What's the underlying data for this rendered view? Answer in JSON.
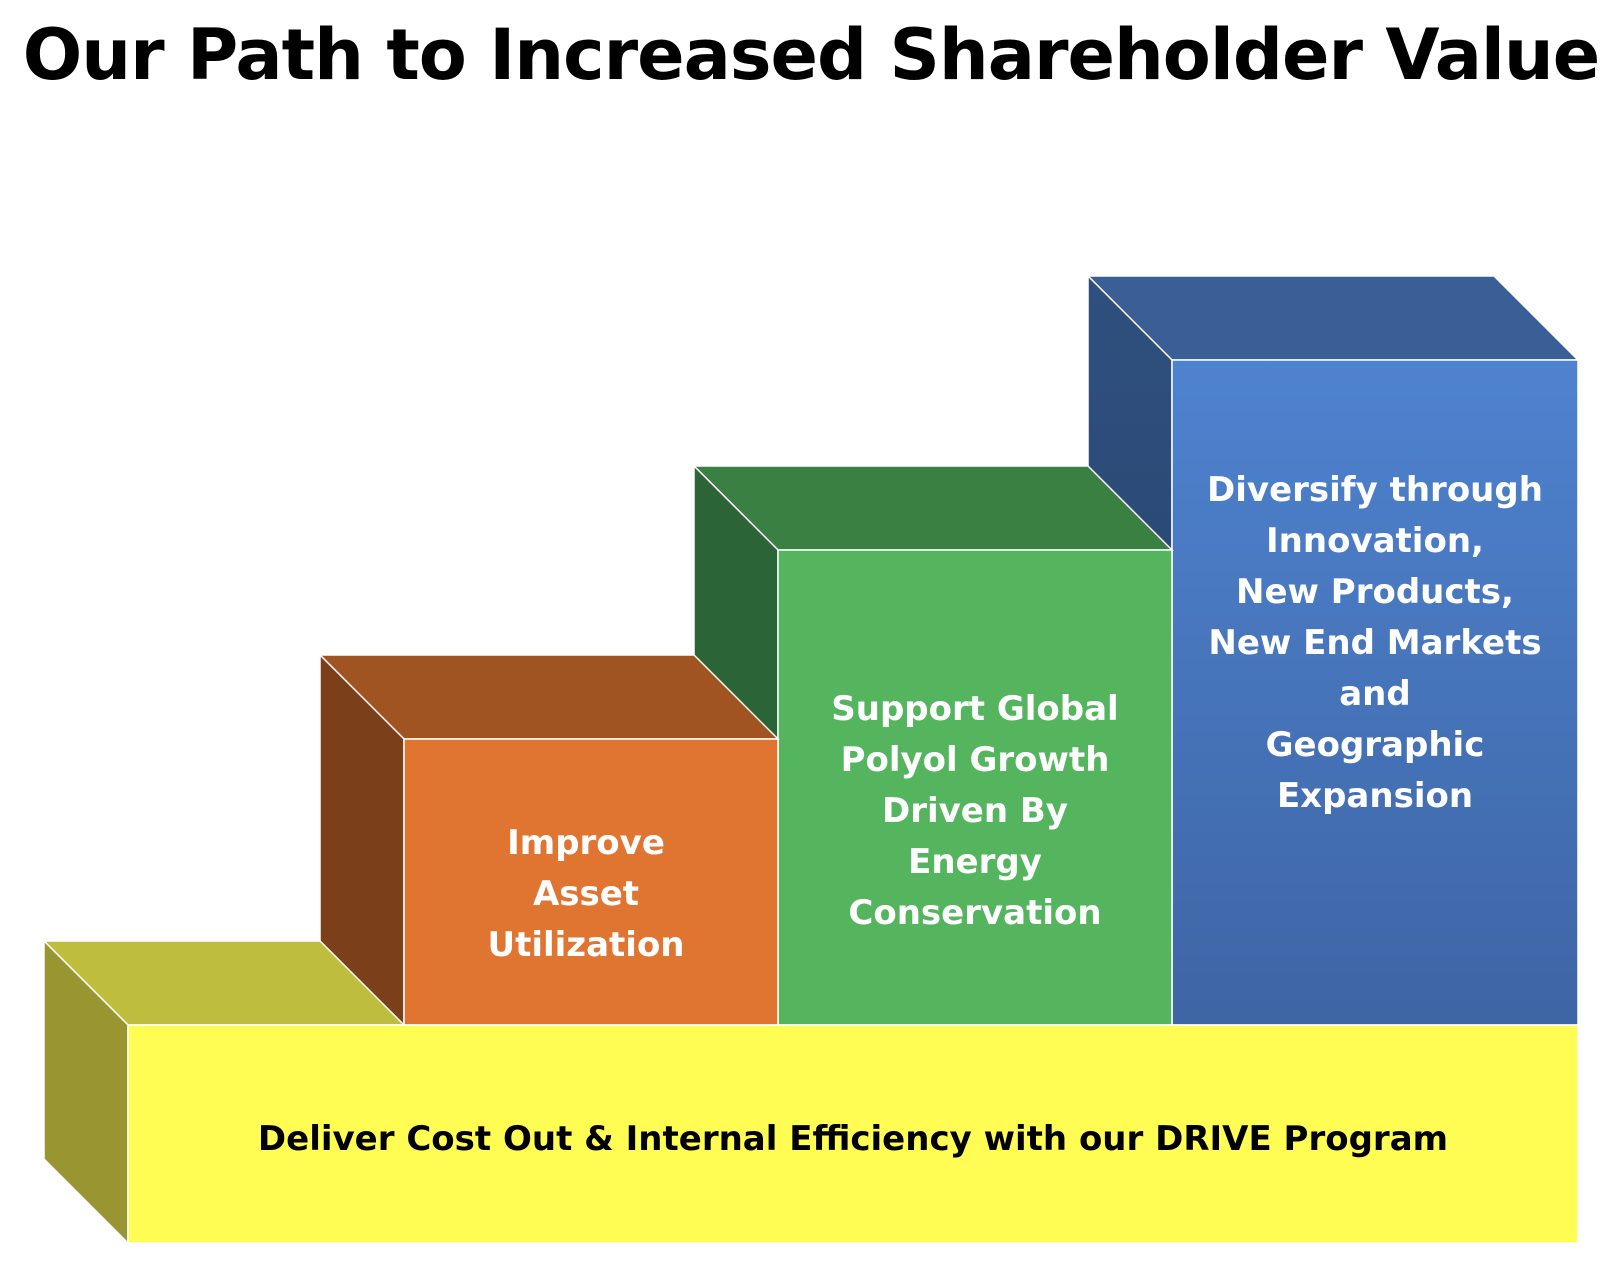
{
  "title": "Our Path to Increased Shareholder Value",
  "colors": {
    "yellow": "#FFFC54",
    "orange": "#E07532",
    "green": "#55B55F",
    "blue": "#4A7CC6"
  },
  "steps": [
    {
      "id": "foundation",
      "label": "Deliver Cost Out & Internal Efficiency with our DRIVE Program"
    },
    {
      "id": "step-1",
      "label": "Improve\nAsset\nUtilization"
    },
    {
      "id": "step-2",
      "label": "Support Global\nPolyol Growth\nDriven By\nEnergy\nConservation"
    },
    {
      "id": "step-3",
      "label": "Diversify through\nInnovation,\nNew Products,\nNew End Markets\nand\nGeographic\nExpansion"
    }
  ]
}
